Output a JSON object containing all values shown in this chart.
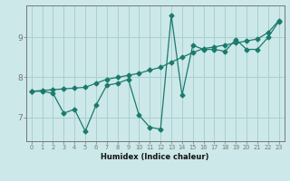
{
  "xlabel": "Humidex (Indice chaleur)",
  "bg_color": "#cce8e8",
  "line_color": "#1a7a6e",
  "grid_color": "#aacfcf",
  "xlim": [
    -0.5,
    23.5
  ],
  "ylim": [
    6.4,
    9.8
  ],
  "yticks": [
    7,
    8,
    9
  ],
  "xticks": [
    0,
    1,
    2,
    3,
    4,
    5,
    6,
    7,
    8,
    9,
    10,
    11,
    12,
    13,
    14,
    15,
    16,
    17,
    18,
    19,
    20,
    21,
    22,
    23
  ],
  "line1_x": [
    0,
    1,
    2,
    3,
    4,
    5,
    6,
    7,
    8,
    9,
    10,
    11,
    12,
    13,
    14,
    15,
    16,
    17,
    18,
    19,
    20,
    21,
    22,
    23
  ],
  "line1_y": [
    7.65,
    7.65,
    7.6,
    7.1,
    7.2,
    6.65,
    7.3,
    7.8,
    7.85,
    7.95,
    7.05,
    6.75,
    6.7,
    9.55,
    7.55,
    8.8,
    8.7,
    8.7,
    8.65,
    8.95,
    8.7,
    8.7,
    9.0,
    9.4
  ],
  "line2_x": [
    0,
    1,
    2,
    3,
    4,
    5,
    6,
    7,
    8,
    9,
    10,
    11,
    12,
    13,
    14,
    15,
    16,
    17,
    18,
    19,
    20,
    21,
    22,
    23
  ],
  "line2_y": [
    7.65,
    7.67,
    7.69,
    7.71,
    7.73,
    7.75,
    7.85,
    7.95,
    8.0,
    8.05,
    8.1,
    8.18,
    8.25,
    8.38,
    8.5,
    8.62,
    8.72,
    8.76,
    8.81,
    8.86,
    8.91,
    8.96,
    9.12,
    9.42
  ]
}
